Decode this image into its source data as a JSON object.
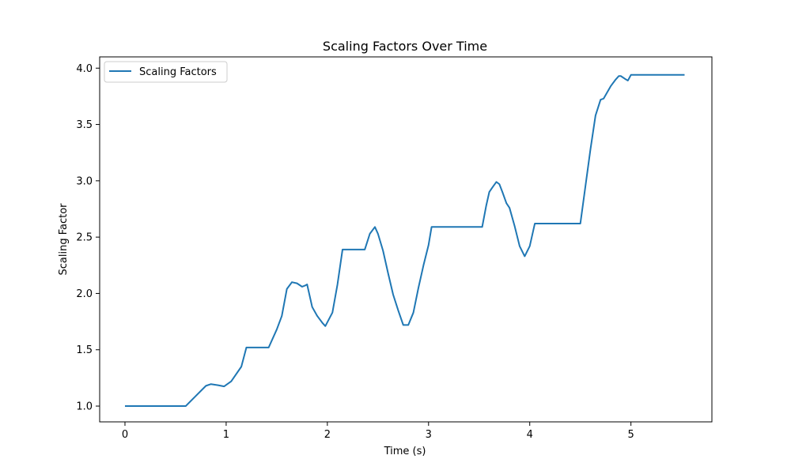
{
  "chart_data": {
    "type": "line",
    "title": "Scaling Factors Over Time",
    "xlabel": "Time (s)",
    "ylabel": "Scaling Factor",
    "xlim": [
      -0.25,
      5.8
    ],
    "ylim": [
      0.86,
      4.1
    ],
    "xticks": [
      0,
      1,
      2,
      3,
      4,
      5
    ],
    "xtick_labels": [
      "0",
      "1",
      "2",
      "3",
      "4",
      "5"
    ],
    "yticks": [
      1.0,
      1.5,
      2.0,
      2.5,
      3.0,
      3.5,
      4.0
    ],
    "ytick_labels": [
      "1.0",
      "1.5",
      "2.0",
      "2.5",
      "3.0",
      "3.5",
      "4.0"
    ],
    "grid": false,
    "legend_position": "upper-left",
    "series": [
      {
        "name": "Scaling Factors",
        "color": "#1f77b4",
        "points": [
          [
            0.0,
            1.0
          ],
          [
            0.6,
            1.0
          ],
          [
            0.7,
            1.09
          ],
          [
            0.8,
            1.18
          ],
          [
            0.85,
            1.195
          ],
          [
            0.92,
            1.185
          ],
          [
            0.98,
            1.175
          ],
          [
            1.05,
            1.22
          ],
          [
            1.15,
            1.35
          ],
          [
            1.2,
            1.52
          ],
          [
            1.42,
            1.52
          ],
          [
            1.5,
            1.68
          ],
          [
            1.55,
            1.8
          ],
          [
            1.6,
            2.04
          ],
          [
            1.65,
            2.1
          ],
          [
            1.7,
            2.09
          ],
          [
            1.75,
            2.06
          ],
          [
            1.78,
            2.07
          ],
          [
            1.8,
            2.08
          ],
          [
            1.85,
            1.88
          ],
          [
            1.9,
            1.8
          ],
          [
            1.95,
            1.74
          ],
          [
            1.98,
            1.71
          ],
          [
            2.05,
            1.83
          ],
          [
            2.1,
            2.08
          ],
          [
            2.15,
            2.39
          ],
          [
            2.37,
            2.39
          ],
          [
            2.42,
            2.53
          ],
          [
            2.47,
            2.59
          ],
          [
            2.5,
            2.53
          ],
          [
            2.55,
            2.38
          ],
          [
            2.6,
            2.18
          ],
          [
            2.65,
            1.99
          ],
          [
            2.7,
            1.85
          ],
          [
            2.75,
            1.72
          ],
          [
            2.8,
            1.72
          ],
          [
            2.85,
            1.83
          ],
          [
            2.9,
            2.05
          ],
          [
            2.95,
            2.25
          ],
          [
            3.0,
            2.43
          ],
          [
            3.03,
            2.59
          ],
          [
            3.53,
            2.59
          ],
          [
            3.57,
            2.78
          ],
          [
            3.6,
            2.9
          ],
          [
            3.63,
            2.94
          ],
          [
            3.67,
            2.99
          ],
          [
            3.7,
            2.97
          ],
          [
            3.73,
            2.9
          ],
          [
            3.77,
            2.8
          ],
          [
            3.8,
            2.76
          ],
          [
            3.85,
            2.6
          ],
          [
            3.9,
            2.42
          ],
          [
            3.95,
            2.33
          ],
          [
            4.0,
            2.42
          ],
          [
            4.05,
            2.62
          ],
          [
            4.5,
            2.62
          ],
          [
            4.55,
            2.95
          ],
          [
            4.6,
            3.28
          ],
          [
            4.65,
            3.58
          ],
          [
            4.7,
            3.72
          ],
          [
            4.73,
            3.73
          ],
          [
            4.8,
            3.84
          ],
          [
            4.85,
            3.9
          ],
          [
            4.88,
            3.93
          ],
          [
            4.9,
            3.93
          ],
          [
            4.95,
            3.9
          ],
          [
            4.97,
            3.89
          ],
          [
            5.0,
            3.94
          ],
          [
            5.53,
            3.94
          ]
        ]
      }
    ]
  }
}
